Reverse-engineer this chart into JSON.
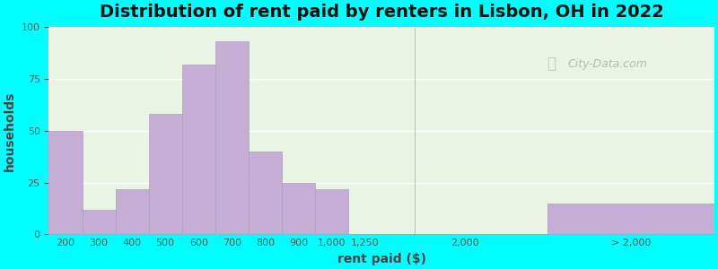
{
  "title": "Distribution of rent paid by renters in Lisbon, OH in 2022",
  "xlabel": "rent paid ($)",
  "ylabel": "households",
  "background_outer": "#00FFFF",
  "background_inner_left": "#d8edd8",
  "background_inner_right": "#f5f5f0",
  "bar_color": "#c4aed4",
  "bar_edge_color": "#b09ec0",
  "categories": [
    "200",
    "300",
    "400",
    "500",
    "600",
    "700",
    "800",
    "900",
    "1,000",
    "1,250",
    "2,000",
    "> 2,000"
  ],
  "values": [
    50,
    12,
    22,
    58,
    82,
    93,
    40,
    25,
    22,
    0,
    0,
    15
  ],
  "ylim": [
    0,
    100
  ],
  "yticks": [
    0,
    25,
    50,
    75,
    100
  ],
  "grid_color": "#e8e8e8",
  "title_fontsize": 14,
  "axis_label_fontsize": 10,
  "tick_fontsize": 8,
  "watermark": "City-Data.com",
  "bar_positions": [
    0,
    1,
    2,
    3,
    4,
    5,
    6,
    7,
    8,
    9,
    12,
    17
  ],
  "bar_widths": [
    1,
    1,
    1,
    1,
    1,
    1,
    1,
    1,
    1,
    1,
    0.01,
    5
  ],
  "xlim": [
    -0.5,
    19.5
  ]
}
